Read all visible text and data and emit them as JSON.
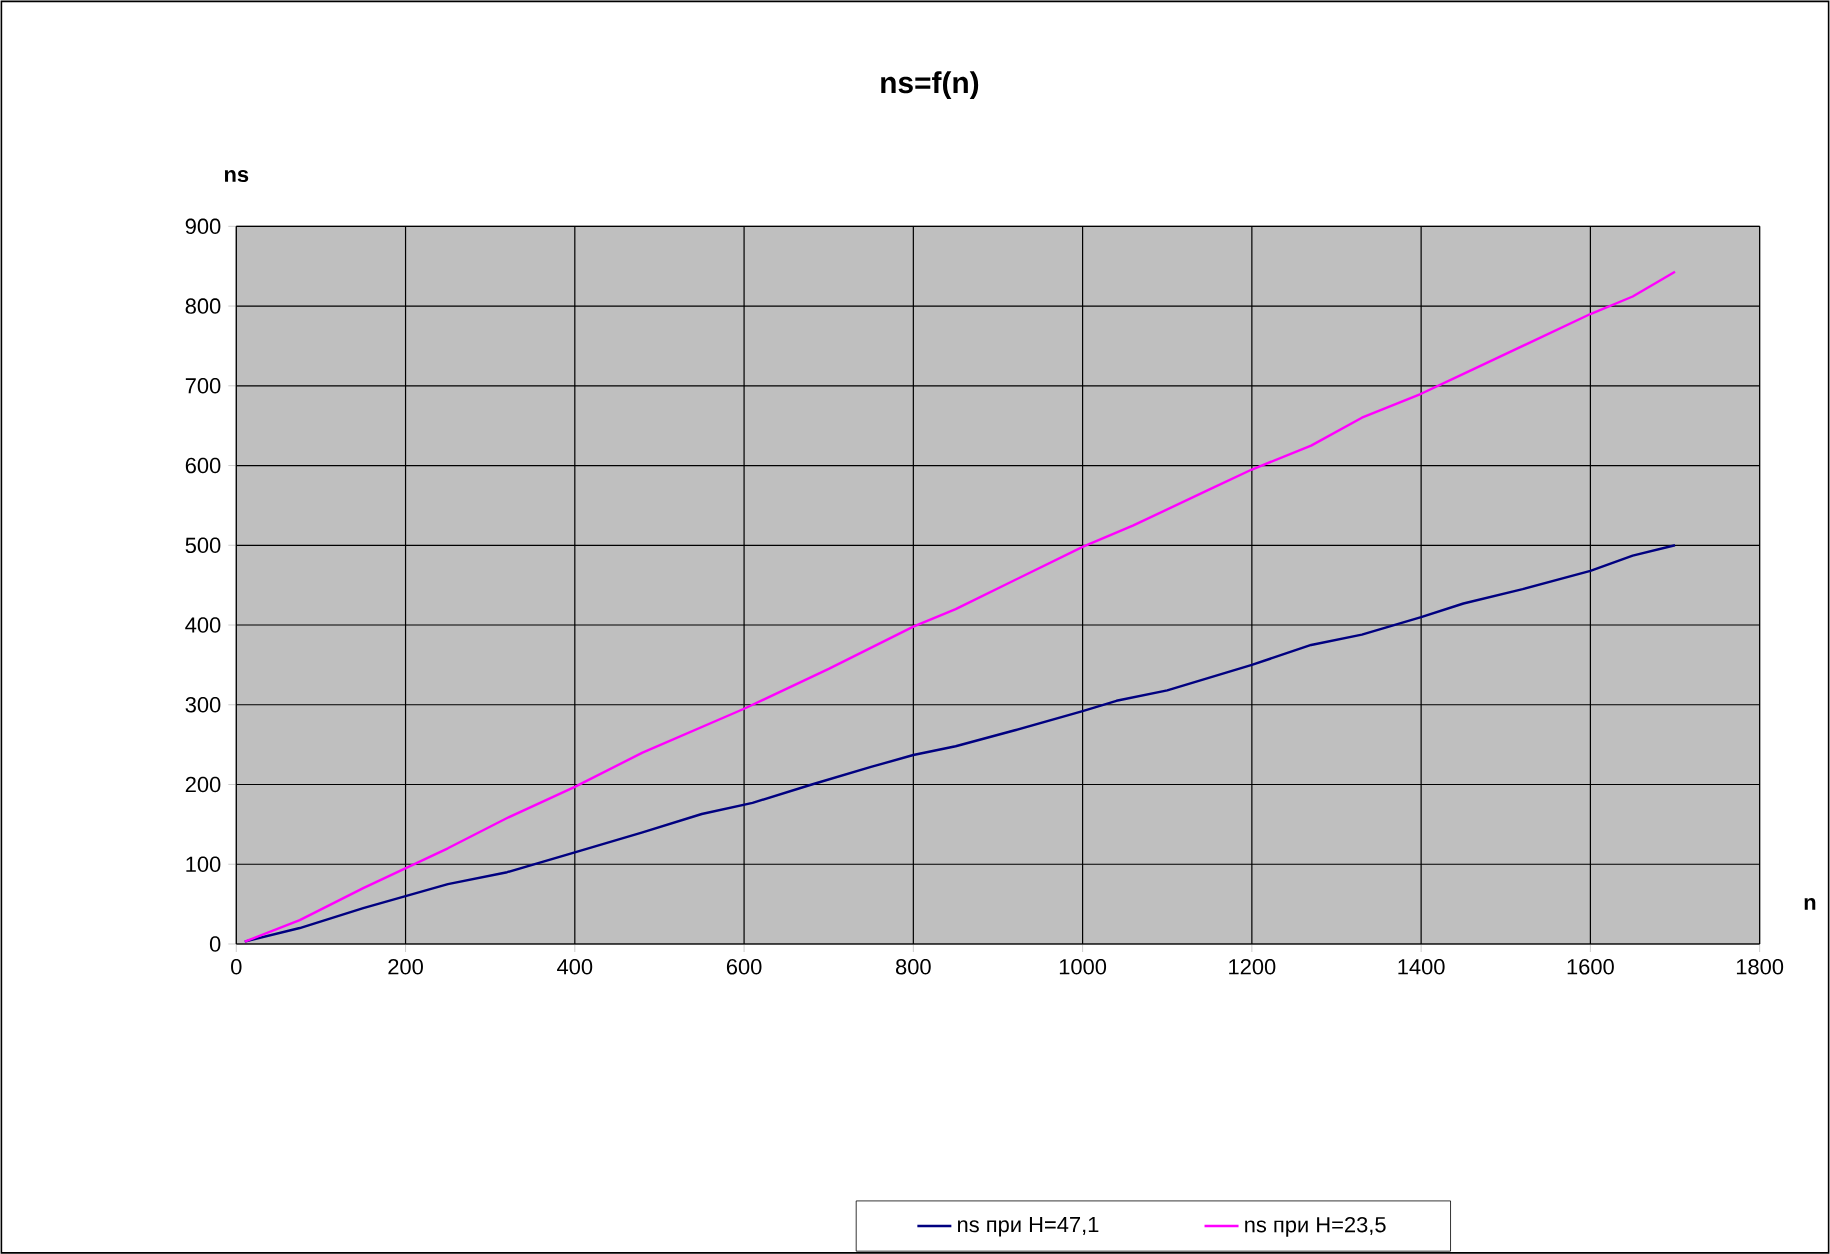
{
  "chart_data": {
    "type": "line",
    "title": "ns=f(n)",
    "xlabel": "n",
    "ylabel": "ns",
    "xlim": [
      0,
      1800
    ],
    "xticks": [
      0,
      200,
      400,
      600,
      800,
      1000,
      1200,
      1400,
      1600,
      1800
    ],
    "ylim": [
      0,
      900
    ],
    "yticks": [
      0,
      100,
      200,
      300,
      400,
      500,
      600,
      700,
      800,
      900
    ],
    "grid": true,
    "legend": "bottom",
    "marker": "none",
    "line_style": "solid",
    "series": [
      {
        "name": "ns при H=47,1",
        "color": "#000080",
        "x": [
          10,
          75,
          150,
          250,
          320,
          400,
          480,
          550,
          610,
          680,
          750,
          800,
          850,
          920,
          1000,
          1040,
          1100,
          1200,
          1270,
          1330,
          1400,
          1450,
          1520,
          1600,
          1650,
          1700
        ],
        "values": [
          3,
          20,
          45,
          75,
          90,
          115,
          140,
          163,
          177,
          200,
          222,
          237,
          248,
          268,
          292,
          305,
          318,
          350,
          375,
          388,
          410,
          427,
          445,
          468,
          487,
          500
        ]
      },
      {
        "name": "ns при H=23,5",
        "color": "#ff00ff",
        "x": [
          10,
          75,
          150,
          250,
          320,
          400,
          480,
          600,
          700,
          800,
          850,
          1000,
          1060,
          1150,
          1200,
          1270,
          1330,
          1400,
          1450,
          1600,
          1650,
          1700
        ],
        "values": [
          3,
          30,
          70,
          120,
          158,
          197,
          240,
          295,
          345,
          398,
          420,
          498,
          525,
          570,
          595,
          625,
          660,
          690,
          715,
          790,
          812,
          843
        ]
      }
    ]
  }
}
